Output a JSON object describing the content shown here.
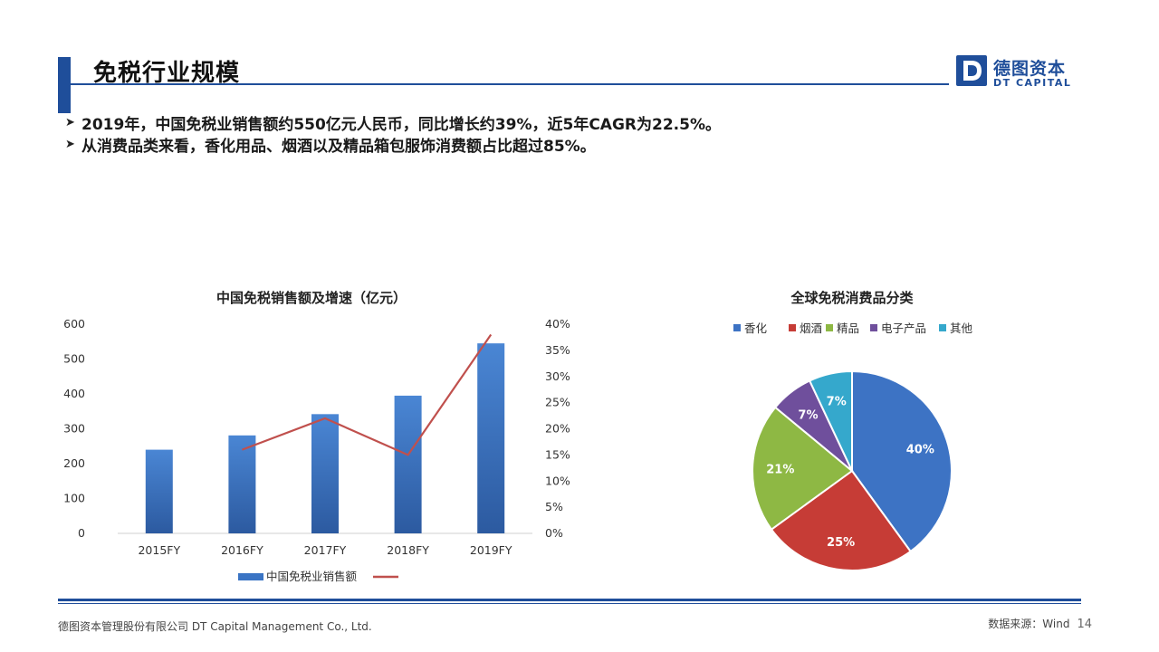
{
  "header": {
    "title": "免税行业规模",
    "logo_cn": "德图资本",
    "logo_en": "DT CAPITAL",
    "accent": "#1f4e9a"
  },
  "bullets": [
    "2019年，中国免税业销售额约550亿元人民币，同比增长约39%，近5年CAGR为22.5%。",
    "从消费品类来看，香化用品、烟酒以及精品箱包服饰消费额占比超过85%。"
  ],
  "chart_data": [
    {
      "type": "bar",
      "title": "中国免税销售额及增速（亿元）",
      "categories": [
        "2015FY",
        "2016FY",
        "2017FY",
        "2018FY",
        "2019FY"
      ],
      "series": [
        {
          "name": "中国免税业销售额",
          "type": "bar",
          "axis": "left",
          "values": [
            240,
            281,
            342,
            395,
            545
          ],
          "color": "#3a74c4"
        },
        {
          "name": "",
          "type": "line",
          "axis": "right",
          "values": [
            null,
            16.0,
            22.0,
            15.0,
            38.0
          ],
          "color": "#c0504d"
        }
      ],
      "y_left": {
        "min": 0,
        "max": 600,
        "ticks": [
          "0",
          "100",
          "200",
          "300",
          "400",
          "500",
          "600"
        ]
      },
      "y_right": {
        "min": 0,
        "max": 40,
        "ticks": [
          "0%",
          "5%",
          "10%",
          "15%",
          "20%",
          "25%",
          "30%",
          "35%",
          "40%"
        ]
      },
      "grid": false,
      "legend": "bottom"
    },
    {
      "type": "pie",
      "title": "全球免税消费品分类",
      "slices": [
        {
          "name": "香化",
          "value": 40,
          "label": "40%",
          "color": "#3d73c4"
        },
        {
          "name": "烟酒",
          "value": 25,
          "label": "25%",
          "color": "#c63c36"
        },
        {
          "name": "精品",
          "value": 21,
          "label": "21%",
          "color": "#8eb844"
        },
        {
          "name": "电子产品",
          "value": 7,
          "label": "7%",
          "color": "#6f4f9c"
        },
        {
          "name": "其他",
          "value": 7,
          "label": "7%",
          "color": "#35a8cc"
        }
      ],
      "legend": "top"
    }
  ],
  "footer": {
    "company": "德图资本管理股份有限公司  DT Capital Management  Co., Ltd.",
    "source": "数据来源：Wind",
    "page": "14"
  }
}
